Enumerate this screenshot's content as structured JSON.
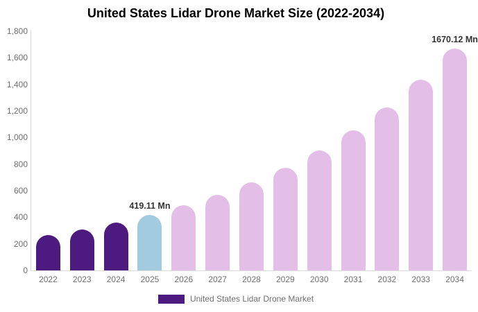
{
  "header": {
    "title": "United States Lidar Drone Market Size (2022-2034)"
  },
  "chart_data": {
    "type": "bar",
    "title": "United States Lidar Drone Market Size (2022-2034)",
    "series_name": "United States Lidar Drone Market",
    "unit": "Mn",
    "categories": [
      "2022",
      "2023",
      "2024",
      "2025",
      "2026",
      "2027",
      "2028",
      "2029",
      "2030",
      "2031",
      "2032",
      "2033",
      "2034"
    ],
    "values": [
      264.3,
      308.2,
      359.4,
      419.11,
      488.7,
      569.9,
      664.5,
      774.8,
      903.5,
      1053.5,
      1228.4,
      1432.4,
      1670.12
    ],
    "ylim": [
      0,
      1800
    ],
    "ytick_interval": 200,
    "ytick_labels": [
      "0",
      "200",
      "400",
      "600",
      "800",
      "1,000",
      "1,200",
      "1,400",
      "1,600",
      "1,800"
    ],
    "grid": false,
    "legend_position": "bottom",
    "bar_colors": [
      "#4D1A7F",
      "#4D1A7F",
      "#4D1A7F",
      "#A3CBDF",
      "#E3BFE8",
      "#E3BFE8",
      "#E3BFE8",
      "#E3BFE8",
      "#E3BFE8",
      "#E3BFE8",
      "#E3BFE8",
      "#E3BFE8",
      "#E3BFE8"
    ],
    "annotations": [
      {
        "category": "2025",
        "label": "419.11 Mn"
      },
      {
        "category": "2034",
        "label": "1670.12 Mn"
      }
    ]
  },
  "legend": {
    "label": "United States Lidar Drone Market",
    "swatch_color": "#4D1A7F"
  },
  "colors": {
    "historical_bar": "#4D1A7F",
    "highlight_bar": "#A3CBDF",
    "forecast_bar": "#E3BFE8",
    "axis_line": "#DCDCDC",
    "tick_text": "#6F6F6F",
    "data_label_text": "#333333",
    "title_text": "#000000",
    "background": "#FFFFFF"
  }
}
